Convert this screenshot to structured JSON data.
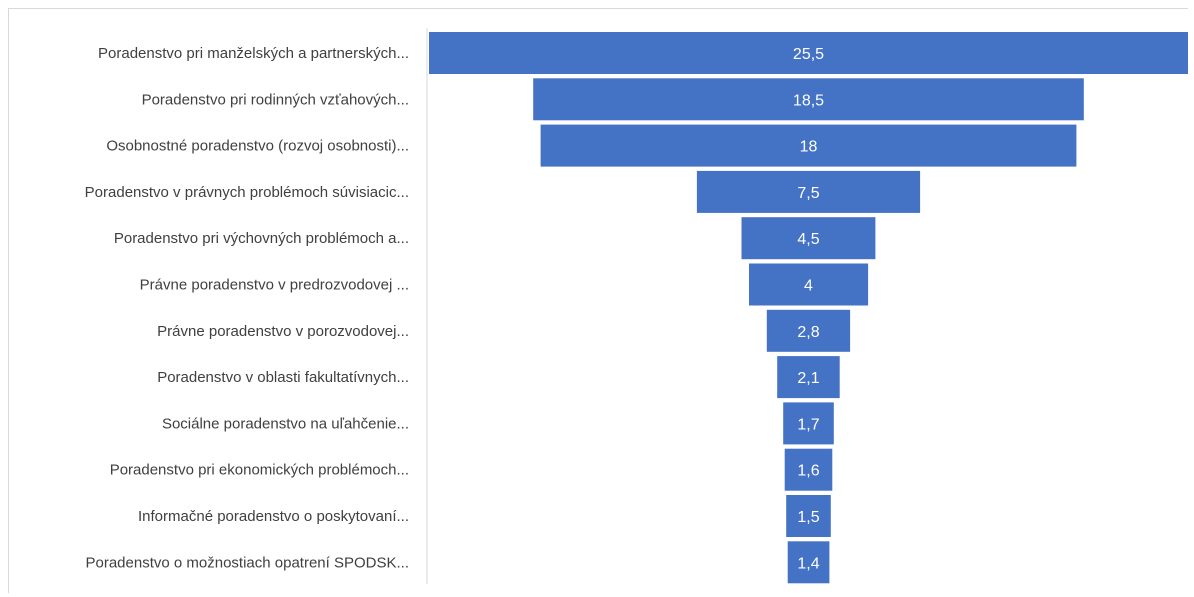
{
  "chart_data": {
    "type": "funnel",
    "categories": [
      "Poradenstvo pri manželských a partnerských...",
      "Poradenstvo pri rodinných vzťahových...",
      "Osobnostné poradenstvo (rozvoj osobnosti)...",
      "Poradenstvo v právnych problémoch súvisiacic...",
      "Poradenstvo pri výchovných problémoch a...",
      "Právne poradenstvo v predrozvodovej ...",
      "Právne poradenstvo v porozvodovej...",
      "Poradenstvo v oblasti fakultatívnych...",
      "Sociálne poradenstvo na uľahčenie...",
      "Poradenstvo pri ekonomických problémoch...",
      "Informačné poradenstvo o poskytovaní...",
      "Poradenstvo o možnostiach opatrení SPODSK..."
    ],
    "values": [
      25.5,
      18.5,
      18,
      7.5,
      4.5,
      4,
      2.8,
      2.1,
      1.7,
      1.6,
      1.5,
      1.4
    ],
    "value_labels": [
      "25,5",
      "18,5",
      "18",
      "7,5",
      "4,5",
      "4",
      "2,8",
      "2,1",
      "1,7",
      "1,6",
      "1,5",
      "1,4"
    ],
    "colors": {
      "bar": "#4472c4",
      "value_text": "#ffffff",
      "category_text": "#404040"
    }
  }
}
